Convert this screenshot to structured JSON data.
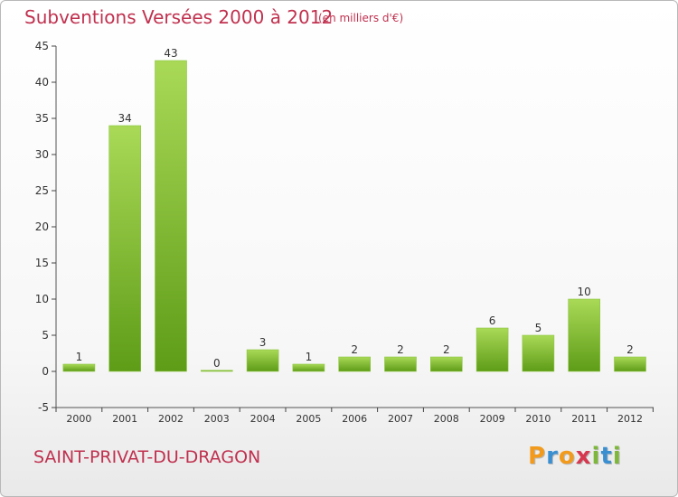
{
  "header": {
    "title": "Subventions Versées 2000 à 2012",
    "unit_note": "(en milliers d'€)"
  },
  "commune": "SAINT-PRIVAT-DU-DRAGON",
  "logo": {
    "letters": [
      "P",
      "r",
      "o",
      "x",
      "i",
      "t",
      "i"
    ],
    "colors": [
      "#f29a1b",
      "#3a8fd1",
      "#f29a1b",
      "#d6384f",
      "#7db83a",
      "#3a8fd1",
      "#7db83a"
    ]
  },
  "colors": {
    "title": "#c0314f",
    "bar_top": "#a9d957",
    "bar_bottom": "#5e9c17",
    "axis": "#555555",
    "grid_tick": "#444444"
  },
  "chart_data": {
    "type": "bar",
    "categories": [
      "2000",
      "2001",
      "2002",
      "2003",
      "2004",
      "2005",
      "2006",
      "2007",
      "2008",
      "2009",
      "2010",
      "2011",
      "2012"
    ],
    "values": [
      1,
      34,
      43,
      0,
      3,
      1,
      2,
      2,
      2,
      6,
      5,
      10,
      2
    ],
    "data_labels": [
      "1",
      "34",
      "43",
      "0",
      "3",
      "1",
      "2",
      "2",
      "2",
      "6",
      "5",
      "10",
      "2"
    ],
    "yticks": [
      "45",
      "40",
      "35",
      "30",
      "25",
      "20",
      "15",
      "10",
      "5",
      "0",
      "-5"
    ],
    "ytick_values": [
      45,
      40,
      35,
      30,
      25,
      20,
      15,
      10,
      5,
      0,
      -5
    ],
    "ylim": [
      -5,
      45
    ],
    "grid": false,
    "legend": "none",
    "title": "Subventions Versées 2000 à 2012",
    "xlabel": "",
    "ylabel": ""
  }
}
